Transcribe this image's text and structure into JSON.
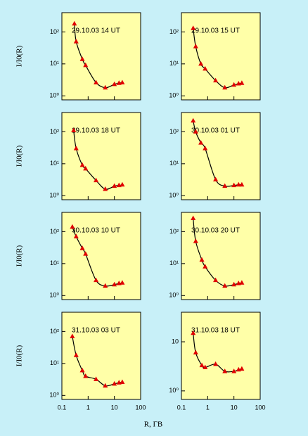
{
  "x_label": "R, ГВ",
  "y_label": "I/I0(R)",
  "chart_data": [
    {
      "type": "scatter",
      "title": "29.10.03   14 UT",
      "color": "#e00000",
      "curve_color": "#000000",
      "x": [
        0.3,
        0.35,
        0.6,
        0.8,
        2,
        4.5,
        10,
        15,
        20
      ],
      "values": [
        180,
        50,
        14,
        9,
        2.6,
        1.8,
        2.3,
        2.5,
        2.6
      ],
      "xlim": [
        0.1,
        100
      ],
      "xticks": [
        0.1,
        1,
        10,
        100
      ],
      "ylim": [
        0.75,
        400
      ],
      "yticks": [
        {
          "value": 100,
          "label": "10²"
        },
        {
          "value": 10,
          "label": "10¹"
        },
        {
          "value": 1,
          "label": "10⁰"
        }
      ],
      "log_x": true,
      "log_y": true
    },
    {
      "type": "scatter",
      "title": "29.10.03   15 UT",
      "color": "#e00000",
      "curve_color": "#000000",
      "x": [
        0.28,
        0.35,
        0.55,
        0.8,
        2,
        4.5,
        10,
        15,
        20
      ],
      "values": [
        130,
        35,
        10,
        7,
        3,
        1.8,
        2.2,
        2.4,
        2.5
      ],
      "xlim": [
        0.1,
        100
      ],
      "xticks": [
        0.1,
        1,
        10,
        100
      ],
      "ylim": [
        0.75,
        400
      ],
      "yticks": [
        {
          "value": 100,
          "label": "10²"
        },
        {
          "value": 10,
          "label": "10¹"
        },
        {
          "value": 1,
          "label": "10⁰"
        }
      ],
      "log_x": true,
      "log_y": true
    },
    {
      "type": "scatter",
      "title": "29.10.03   18 UT",
      "color": "#e00000",
      "curve_color": "#000000",
      "x": [
        0.28,
        0.35,
        0.6,
        0.8,
        2,
        4.5,
        10,
        15,
        20
      ],
      "values": [
        110,
        30,
        9,
        7,
        3,
        1.6,
        2,
        2.1,
        2.2
      ],
      "xlim": [
        0.1,
        100
      ],
      "xticks": [
        0.1,
        1,
        10,
        100
      ],
      "ylim": [
        0.75,
        400
      ],
      "yticks": [
        {
          "value": 100,
          "label": "10²"
        },
        {
          "value": 10,
          "label": "10¹"
        },
        {
          "value": 1,
          "label": "10⁰"
        }
      ],
      "log_x": true,
      "log_y": true
    },
    {
      "type": "scatter",
      "title": "30.10.03   01 UT",
      "color": "#e00000",
      "curve_color": "#000000",
      "x": [
        0.28,
        0.35,
        0.55,
        0.8,
        2,
        4.5,
        10,
        15,
        20
      ],
      "values": [
        220,
        100,
        45,
        30,
        3.2,
        2,
        2.1,
        2.2,
        2.2
      ],
      "xlim": [
        0.1,
        100
      ],
      "xticks": [
        0.1,
        1,
        10,
        100
      ],
      "ylim": [
        0.75,
        400
      ],
      "yticks": [
        {
          "value": 100,
          "label": "10²"
        },
        {
          "value": 10,
          "label": "10¹"
        },
        {
          "value": 1,
          "label": "10⁰"
        }
      ],
      "log_x": true,
      "log_y": true
    },
    {
      "type": "scatter",
      "title": "30.10.03   10 UT",
      "color": "#e00000",
      "curve_color": "#000000",
      "x": [
        0.25,
        0.35,
        0.6,
        0.8,
        2,
        4.5,
        10,
        15,
        20
      ],
      "values": [
        140,
        70,
        30,
        20,
        3,
        2,
        2.2,
        2.4,
        2.5
      ],
      "xlim": [
        0.1,
        100
      ],
      "xticks": [
        0.1,
        1,
        10,
        100
      ],
      "ylim": [
        0.75,
        400
      ],
      "yticks": [
        {
          "value": 100,
          "label": "10²"
        },
        {
          "value": 10,
          "label": "10¹"
        },
        {
          "value": 1,
          "label": "10⁰"
        }
      ],
      "log_x": true,
      "log_y": true
    },
    {
      "type": "scatter",
      "title": "30.10.03   20 UT",
      "color": "#e00000",
      "curve_color": "#000000",
      "x": [
        0.28,
        0.35,
        0.6,
        0.8,
        2,
        4.5,
        10,
        15,
        20
      ],
      "values": [
        260,
        50,
        13,
        8,
        3,
        2,
        2.2,
        2.4,
        2.5
      ],
      "xlim": [
        0.1,
        100
      ],
      "xticks": [
        0.1,
        1,
        10,
        100
      ],
      "ylim": [
        0.75,
        400
      ],
      "yticks": [
        {
          "value": 100,
          "label": "10²"
        },
        {
          "value": 10,
          "label": "10¹"
        },
        {
          "value": 1,
          "label": "10⁰"
        }
      ],
      "log_x": true,
      "log_y": true
    },
    {
      "type": "scatter",
      "title": "31.10.03   03 UT",
      "color": "#e00000",
      "curve_color": "#000000",
      "x": [
        0.25,
        0.35,
        0.6,
        0.8,
        2,
        4.5,
        10,
        15,
        20
      ],
      "values": [
        70,
        18,
        6,
        4,
        3.2,
        2,
        2.3,
        2.5,
        2.6
      ],
      "xlim": [
        0.1,
        100
      ],
      "xticks": [
        0.1,
        1,
        10,
        100
      ],
      "ylim": [
        0.75,
        400
      ],
      "yticks": [
        {
          "value": 100,
          "label": "10²"
        },
        {
          "value": 10,
          "label": "10¹"
        },
        {
          "value": 1,
          "label": "10⁰"
        }
      ],
      "log_x": true,
      "log_y": true
    },
    {
      "type": "scatter",
      "title": "31.10.03   18 UT",
      "color": "#e00000",
      "curve_color": "#000000",
      "x": [
        0.28,
        0.35,
        0.6,
        0.8,
        2,
        4.5,
        10,
        15,
        20
      ],
      "values": [
        15,
        6,
        3.3,
        3,
        3.5,
        2.5,
        2.5,
        2.7,
        2.8
      ],
      "xlim": [
        0.1,
        100
      ],
      "xticks": [
        0.1,
        1,
        10,
        100
      ],
      "ylim": [
        0.67,
        40
      ],
      "yticks": [
        10,
        {
          "value": 1,
          "label": "10⁰"
        }
      ],
      "log_x": true,
      "log_y": true
    }
  ]
}
